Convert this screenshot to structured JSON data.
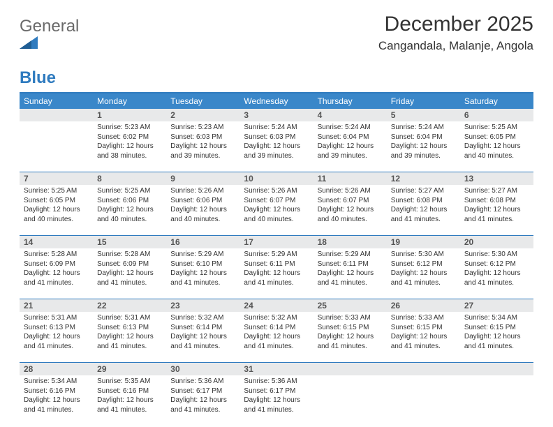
{
  "brand": {
    "part1": "General",
    "part2": "Blue"
  },
  "colors": {
    "brand_blue": "#2f7bbf",
    "header_bg": "#3a87c9",
    "daynum_bg": "#e8e9ea",
    "text": "#333333",
    "logo_gray": "#6a6a6a"
  },
  "title": "December 2025",
  "subtitle": "Cangandala, Malanje, Angola",
  "day_names": [
    "Sunday",
    "Monday",
    "Tuesday",
    "Wednesday",
    "Thursday",
    "Friday",
    "Saturday"
  ],
  "weeks": [
    [
      {
        "n": "",
        "sr": "",
        "ss": "",
        "dl": ""
      },
      {
        "n": "1",
        "sr": "Sunrise: 5:23 AM",
        "ss": "Sunset: 6:02 PM",
        "dl": "Daylight: 12 hours and 38 minutes."
      },
      {
        "n": "2",
        "sr": "Sunrise: 5:23 AM",
        "ss": "Sunset: 6:03 PM",
        "dl": "Daylight: 12 hours and 39 minutes."
      },
      {
        "n": "3",
        "sr": "Sunrise: 5:24 AM",
        "ss": "Sunset: 6:03 PM",
        "dl": "Daylight: 12 hours and 39 minutes."
      },
      {
        "n": "4",
        "sr": "Sunrise: 5:24 AM",
        "ss": "Sunset: 6:04 PM",
        "dl": "Daylight: 12 hours and 39 minutes."
      },
      {
        "n": "5",
        "sr": "Sunrise: 5:24 AM",
        "ss": "Sunset: 6:04 PM",
        "dl": "Daylight: 12 hours and 39 minutes."
      },
      {
        "n": "6",
        "sr": "Sunrise: 5:25 AM",
        "ss": "Sunset: 6:05 PM",
        "dl": "Daylight: 12 hours and 40 minutes."
      }
    ],
    [
      {
        "n": "7",
        "sr": "Sunrise: 5:25 AM",
        "ss": "Sunset: 6:05 PM",
        "dl": "Daylight: 12 hours and 40 minutes."
      },
      {
        "n": "8",
        "sr": "Sunrise: 5:25 AM",
        "ss": "Sunset: 6:06 PM",
        "dl": "Daylight: 12 hours and 40 minutes."
      },
      {
        "n": "9",
        "sr": "Sunrise: 5:26 AM",
        "ss": "Sunset: 6:06 PM",
        "dl": "Daylight: 12 hours and 40 minutes."
      },
      {
        "n": "10",
        "sr": "Sunrise: 5:26 AM",
        "ss": "Sunset: 6:07 PM",
        "dl": "Daylight: 12 hours and 40 minutes."
      },
      {
        "n": "11",
        "sr": "Sunrise: 5:26 AM",
        "ss": "Sunset: 6:07 PM",
        "dl": "Daylight: 12 hours and 40 minutes."
      },
      {
        "n": "12",
        "sr": "Sunrise: 5:27 AM",
        "ss": "Sunset: 6:08 PM",
        "dl": "Daylight: 12 hours and 41 minutes."
      },
      {
        "n": "13",
        "sr": "Sunrise: 5:27 AM",
        "ss": "Sunset: 6:08 PM",
        "dl": "Daylight: 12 hours and 41 minutes."
      }
    ],
    [
      {
        "n": "14",
        "sr": "Sunrise: 5:28 AM",
        "ss": "Sunset: 6:09 PM",
        "dl": "Daylight: 12 hours and 41 minutes."
      },
      {
        "n": "15",
        "sr": "Sunrise: 5:28 AM",
        "ss": "Sunset: 6:09 PM",
        "dl": "Daylight: 12 hours and 41 minutes."
      },
      {
        "n": "16",
        "sr": "Sunrise: 5:29 AM",
        "ss": "Sunset: 6:10 PM",
        "dl": "Daylight: 12 hours and 41 minutes."
      },
      {
        "n": "17",
        "sr": "Sunrise: 5:29 AM",
        "ss": "Sunset: 6:11 PM",
        "dl": "Daylight: 12 hours and 41 minutes."
      },
      {
        "n": "18",
        "sr": "Sunrise: 5:29 AM",
        "ss": "Sunset: 6:11 PM",
        "dl": "Daylight: 12 hours and 41 minutes."
      },
      {
        "n": "19",
        "sr": "Sunrise: 5:30 AM",
        "ss": "Sunset: 6:12 PM",
        "dl": "Daylight: 12 hours and 41 minutes."
      },
      {
        "n": "20",
        "sr": "Sunrise: 5:30 AM",
        "ss": "Sunset: 6:12 PM",
        "dl": "Daylight: 12 hours and 41 minutes."
      }
    ],
    [
      {
        "n": "21",
        "sr": "Sunrise: 5:31 AM",
        "ss": "Sunset: 6:13 PM",
        "dl": "Daylight: 12 hours and 41 minutes."
      },
      {
        "n": "22",
        "sr": "Sunrise: 5:31 AM",
        "ss": "Sunset: 6:13 PM",
        "dl": "Daylight: 12 hours and 41 minutes."
      },
      {
        "n": "23",
        "sr": "Sunrise: 5:32 AM",
        "ss": "Sunset: 6:14 PM",
        "dl": "Daylight: 12 hours and 41 minutes."
      },
      {
        "n": "24",
        "sr": "Sunrise: 5:32 AM",
        "ss": "Sunset: 6:14 PM",
        "dl": "Daylight: 12 hours and 41 minutes."
      },
      {
        "n": "25",
        "sr": "Sunrise: 5:33 AM",
        "ss": "Sunset: 6:15 PM",
        "dl": "Daylight: 12 hours and 41 minutes."
      },
      {
        "n": "26",
        "sr": "Sunrise: 5:33 AM",
        "ss": "Sunset: 6:15 PM",
        "dl": "Daylight: 12 hours and 41 minutes."
      },
      {
        "n": "27",
        "sr": "Sunrise: 5:34 AM",
        "ss": "Sunset: 6:15 PM",
        "dl": "Daylight: 12 hours and 41 minutes."
      }
    ],
    [
      {
        "n": "28",
        "sr": "Sunrise: 5:34 AM",
        "ss": "Sunset: 6:16 PM",
        "dl": "Daylight: 12 hours and 41 minutes."
      },
      {
        "n": "29",
        "sr": "Sunrise: 5:35 AM",
        "ss": "Sunset: 6:16 PM",
        "dl": "Daylight: 12 hours and 41 minutes."
      },
      {
        "n": "30",
        "sr": "Sunrise: 5:36 AM",
        "ss": "Sunset: 6:17 PM",
        "dl": "Daylight: 12 hours and 41 minutes."
      },
      {
        "n": "31",
        "sr": "Sunrise: 5:36 AM",
        "ss": "Sunset: 6:17 PM",
        "dl": "Daylight: 12 hours and 41 minutes."
      },
      {
        "n": "",
        "sr": "",
        "ss": "",
        "dl": ""
      },
      {
        "n": "",
        "sr": "",
        "ss": "",
        "dl": ""
      },
      {
        "n": "",
        "sr": "",
        "ss": "",
        "dl": ""
      }
    ]
  ]
}
